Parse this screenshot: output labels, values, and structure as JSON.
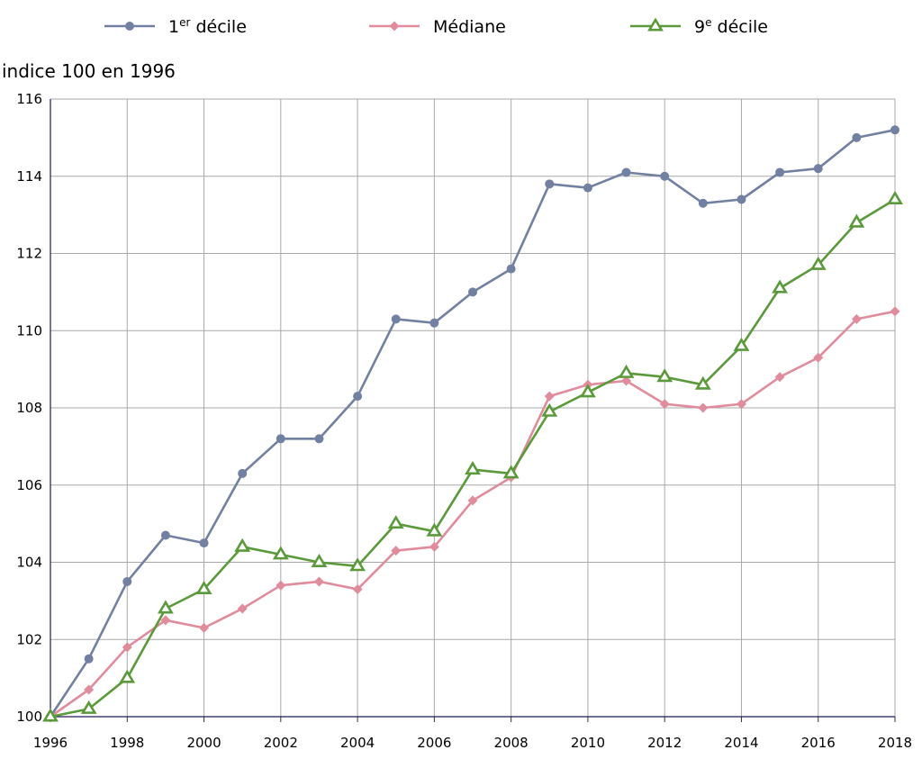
{
  "chart_data": {
    "type": "line",
    "ylabel": "indice 100 en 1996",
    "xlabel": "",
    "ylim": [
      100,
      116
    ],
    "xlim": [
      1996,
      2018
    ],
    "grid": true,
    "legend_position": "top",
    "x": [
      1996,
      1997,
      1998,
      1999,
      2000,
      2001,
      2002,
      2003,
      2004,
      2005,
      2006,
      2007,
      2008,
      2009,
      2010,
      2011,
      2012,
      2013,
      2014,
      2015,
      2016,
      2017,
      2018
    ],
    "x_ticks": [
      1996,
      1998,
      2000,
      2002,
      2004,
      2006,
      2008,
      2010,
      2012,
      2014,
      2016,
      2018
    ],
    "y_ticks": [
      100,
      102,
      104,
      106,
      108,
      110,
      112,
      114,
      116
    ],
    "series": [
      {
        "name": "1er décile",
        "name_base": "1",
        "name_sup": "er",
        "name_rest": " décile",
        "color": "#7280a1",
        "marker": "circle",
        "values": [
          100,
          101.5,
          103.5,
          104.7,
          104.5,
          106.3,
          107.2,
          107.2,
          108.3,
          110.3,
          110.2,
          111.0,
          111.6,
          113.8,
          113.7,
          114.1,
          114.0,
          113.3,
          113.4,
          114.1,
          114.2,
          115.0,
          115.2
        ]
      },
      {
        "name": "Médiane",
        "name_base": "Médiane",
        "name_sup": "",
        "name_rest": "",
        "color": "#e08c9c",
        "marker": "diamond",
        "values": [
          100,
          100.7,
          101.8,
          102.5,
          102.3,
          102.8,
          103.4,
          103.5,
          103.3,
          104.3,
          104.4,
          105.6,
          106.2,
          108.3,
          108.6,
          108.7,
          108.1,
          108.0,
          108.1,
          108.8,
          109.3,
          110.3,
          110.5
        ]
      },
      {
        "name": "9e décile",
        "name_base": "9",
        "name_sup": "e",
        "name_rest": " décile",
        "color": "#5a9a3a",
        "marker": "triangle",
        "values": [
          100,
          100.2,
          101.0,
          102.8,
          103.3,
          104.4,
          104.2,
          104.0,
          103.9,
          105.0,
          104.8,
          106.4,
          106.3,
          107.9,
          108.4,
          108.9,
          108.8,
          108.6,
          109.6,
          111.1,
          111.7,
          112.8,
          113.4
        ]
      }
    ]
  }
}
